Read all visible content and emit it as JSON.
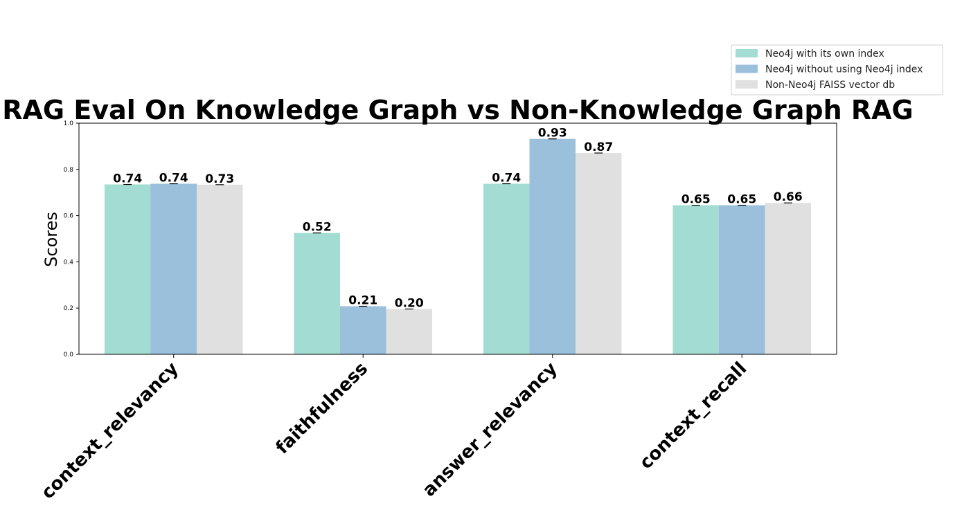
{
  "chart_data": {
    "type": "bar",
    "title": "RAG Eval On Knowledge Graph vs Non-Knowledge Graph RAG",
    "xlabel": "",
    "ylabel": "Scores",
    "ylim": [
      0,
      1.0
    ],
    "yticks": [
      "0.0",
      "0.2",
      "0.4",
      "0.6",
      "0.8",
      "1.0"
    ],
    "categories": [
      "context_relevancy",
      "faithfulness",
      "answer_relevancy",
      "context_recall"
    ],
    "series": [
      {
        "name": "Neo4j with its own index",
        "color": "#a3dcd2",
        "values": [
          0.735,
          0.525,
          0.738,
          0.645
        ],
        "labels": [
          "0.74",
          "0.52",
          "0.74",
          "0.65"
        ]
      },
      {
        "name": "Neo4j without using Neo4j index",
        "color": "#9bc0dc",
        "values": [
          0.738,
          0.208,
          0.932,
          0.645
        ],
        "labels": [
          "0.74",
          "0.21",
          "0.93",
          "0.65"
        ]
      },
      {
        "name": "Non-Neo4j FAISS vector db",
        "color": "#e0e0e0",
        "values": [
          0.734,
          0.196,
          0.871,
          0.655
        ],
        "labels": [
          "0.73",
          "0.20",
          "0.87",
          "0.66"
        ]
      }
    ],
    "grid": false,
    "legend": "top-right, outside plot"
  }
}
